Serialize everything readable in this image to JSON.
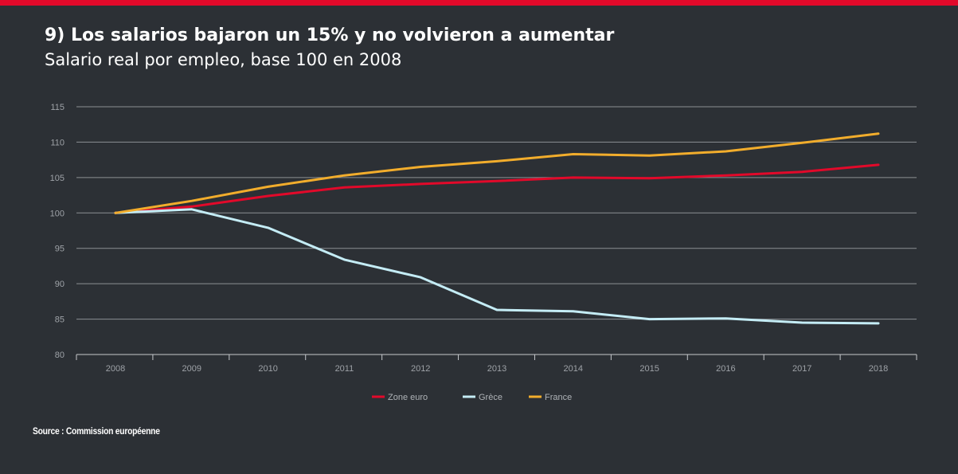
{
  "header": {
    "title": "9) Los salarios bajaron un 15% y no volvieron a aumentar",
    "subtitle": "Salario real por empleo, base 100 en 2008"
  },
  "source": "Source : Commission européenne",
  "chart_data": {
    "type": "line",
    "title": "9) Los salarios bajaron un 15% y no volvieron a aumentar",
    "subtitle": "Salario real por empleo, base 100 en 2008",
    "xlabel": "",
    "ylabel": "",
    "categories": [
      "2008",
      "2009",
      "2010",
      "2011",
      "2012",
      "2013",
      "2014",
      "2015",
      "2016",
      "2017",
      "2018"
    ],
    "ylim": [
      80,
      115
    ],
    "yticks": [
      80,
      85,
      90,
      95,
      100,
      105,
      110,
      115
    ],
    "grid": true,
    "legend_position": "bottom-center",
    "series": [
      {
        "name": "Zone euro",
        "color": "#e2092a",
        "values": [
          100,
          100.9,
          102.4,
          103.6,
          104.1,
          104.5,
          105.0,
          104.9,
          105.3,
          105.8,
          106.8
        ]
      },
      {
        "name": "Grèce",
        "color": "#c4ecf5",
        "values": [
          100,
          100.5,
          97.9,
          93.4,
          90.9,
          86.3,
          86.1,
          85.0,
          85.1,
          84.5,
          84.4
        ]
      },
      {
        "name": "France",
        "color": "#f2ad2c",
        "values": [
          100,
          101.7,
          103.7,
          105.3,
          106.5,
          107.3,
          108.3,
          108.1,
          108.7,
          109.9,
          111.2
        ]
      }
    ],
    "source": "Source : Commission européenne"
  },
  "colors": {
    "background": "#2c3035",
    "accent_bar": "#e2092a",
    "grid": "#8b8f94",
    "tick_text": "#9ea2a7"
  }
}
